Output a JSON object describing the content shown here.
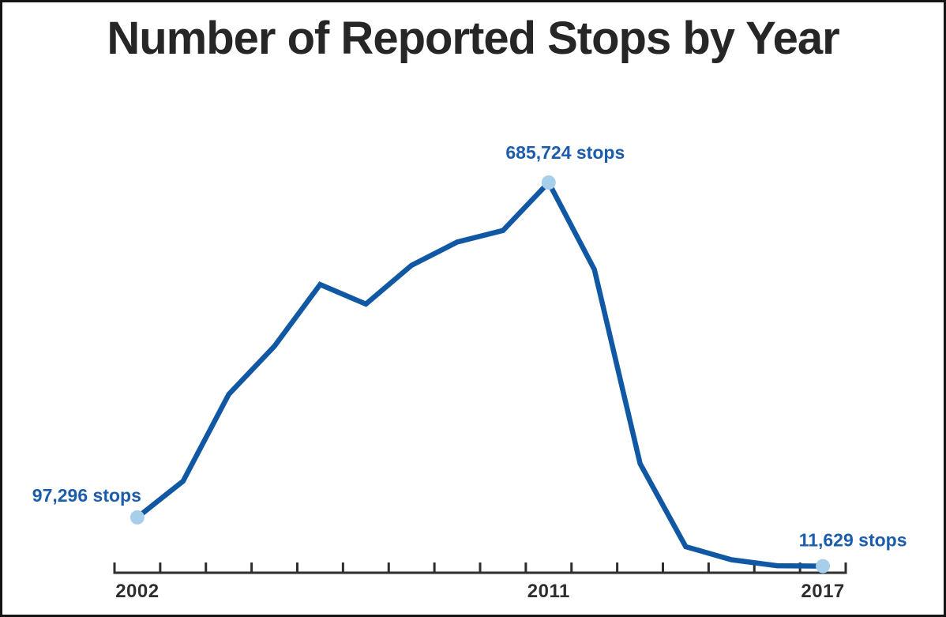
{
  "page": {
    "title": "Number of Reported Stops by Year"
  },
  "chart_data": {
    "type": "line",
    "title": "Number of Reported Stops by Year",
    "xlabel": "",
    "ylabel": "",
    "x": [
      2002,
      2003,
      2004,
      2005,
      2006,
      2007,
      2008,
      2009,
      2010,
      2011,
      2012,
      2013,
      2014,
      2015,
      2016,
      2017
    ],
    "values": [
      97296,
      160851,
      313523,
      398191,
      506491,
      472096,
      540302,
      581168,
      601285,
      685724,
      532911,
      191851,
      45787,
      22939,
      12404,
      11629
    ],
    "series_name": "Reported stops",
    "ylim": [
      0,
      685724
    ],
    "grid": false,
    "legend": false,
    "x_tick_labels": [
      "2002",
      "2011",
      "2017"
    ],
    "annotations": [
      {
        "year": 2002,
        "value": 97296,
        "label": "97,296 stops",
        "position": "left"
      },
      {
        "year": 2011,
        "value": 685724,
        "label": "685,724 stops",
        "position": "top"
      },
      {
        "year": 2017,
        "value": 11629,
        "label": "11,629 stops",
        "position": "right"
      }
    ],
    "colors": {
      "line": "#1158a4",
      "marker": "#a8cfe9",
      "annotation_text": "#1b5cad",
      "axis": "#2e2e2e",
      "title": "#262626"
    }
  }
}
